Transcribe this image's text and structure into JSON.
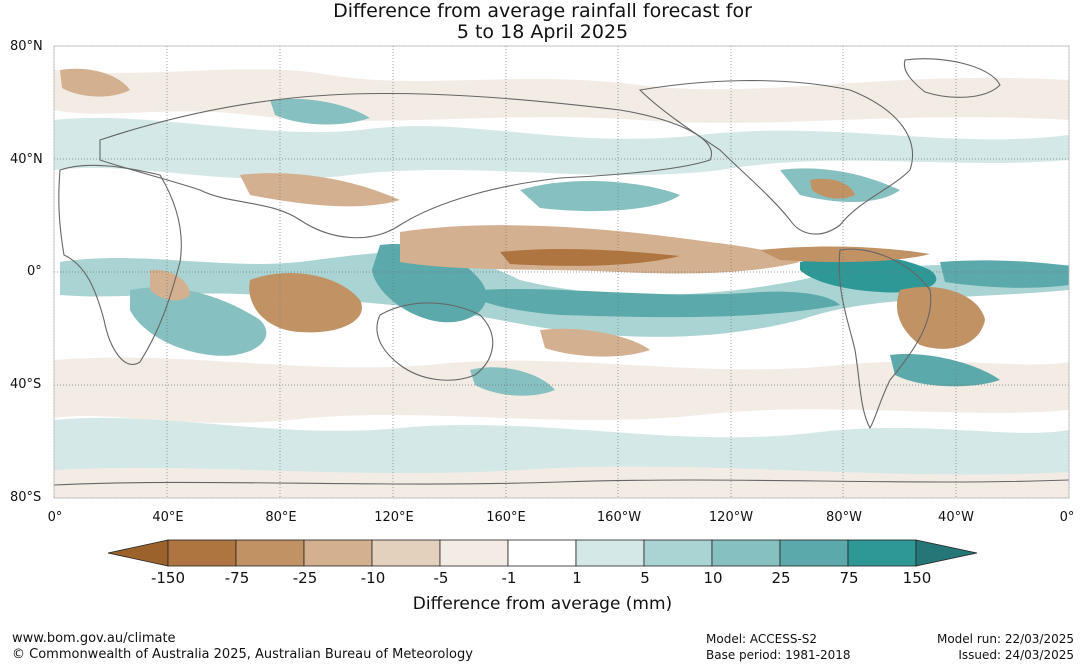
{
  "title": {
    "line1": "Difference from average rainfall forecast for",
    "line2": "5 to 18 April 2025"
  },
  "map": {
    "lat_labels": [
      "80°N",
      "40°N",
      "0°",
      "40°S",
      "80°S"
    ],
    "lon_labels": [
      "0°",
      "40°E",
      "80°E",
      "120°E",
      "160°E",
      "160°W",
      "120°W",
      "80°W",
      "40°W",
      "0°"
    ]
  },
  "legend": {
    "title": "Difference from average (mm)",
    "tick_labels": [
      "-150",
      "-75",
      "-25",
      "-10",
      "-5",
      "-1",
      "1",
      "5",
      "10",
      "25",
      "75",
      "150"
    ],
    "colors": [
      "#9c622c",
      "#ae7540",
      "#c19264",
      "#d3b08f",
      "#e3d0bd",
      "#f3ece5",
      "#ffffff",
      "#d3e8e7",
      "#aad4d3",
      "#86c0c0",
      "#5ba9aa",
      "#2e9896",
      "#257677"
    ]
  },
  "footer": {
    "url": "www.bom.gov.au/climate",
    "copyright": "© Commonwealth of Australia 2025, Australian Bureau of Meteorology",
    "model": "Model: ACCESS-S2",
    "base_period": "Base period: 1981-2018",
    "model_run": "Model run: 22/03/2025",
    "issued": "Issued: 24/03/2025"
  }
}
